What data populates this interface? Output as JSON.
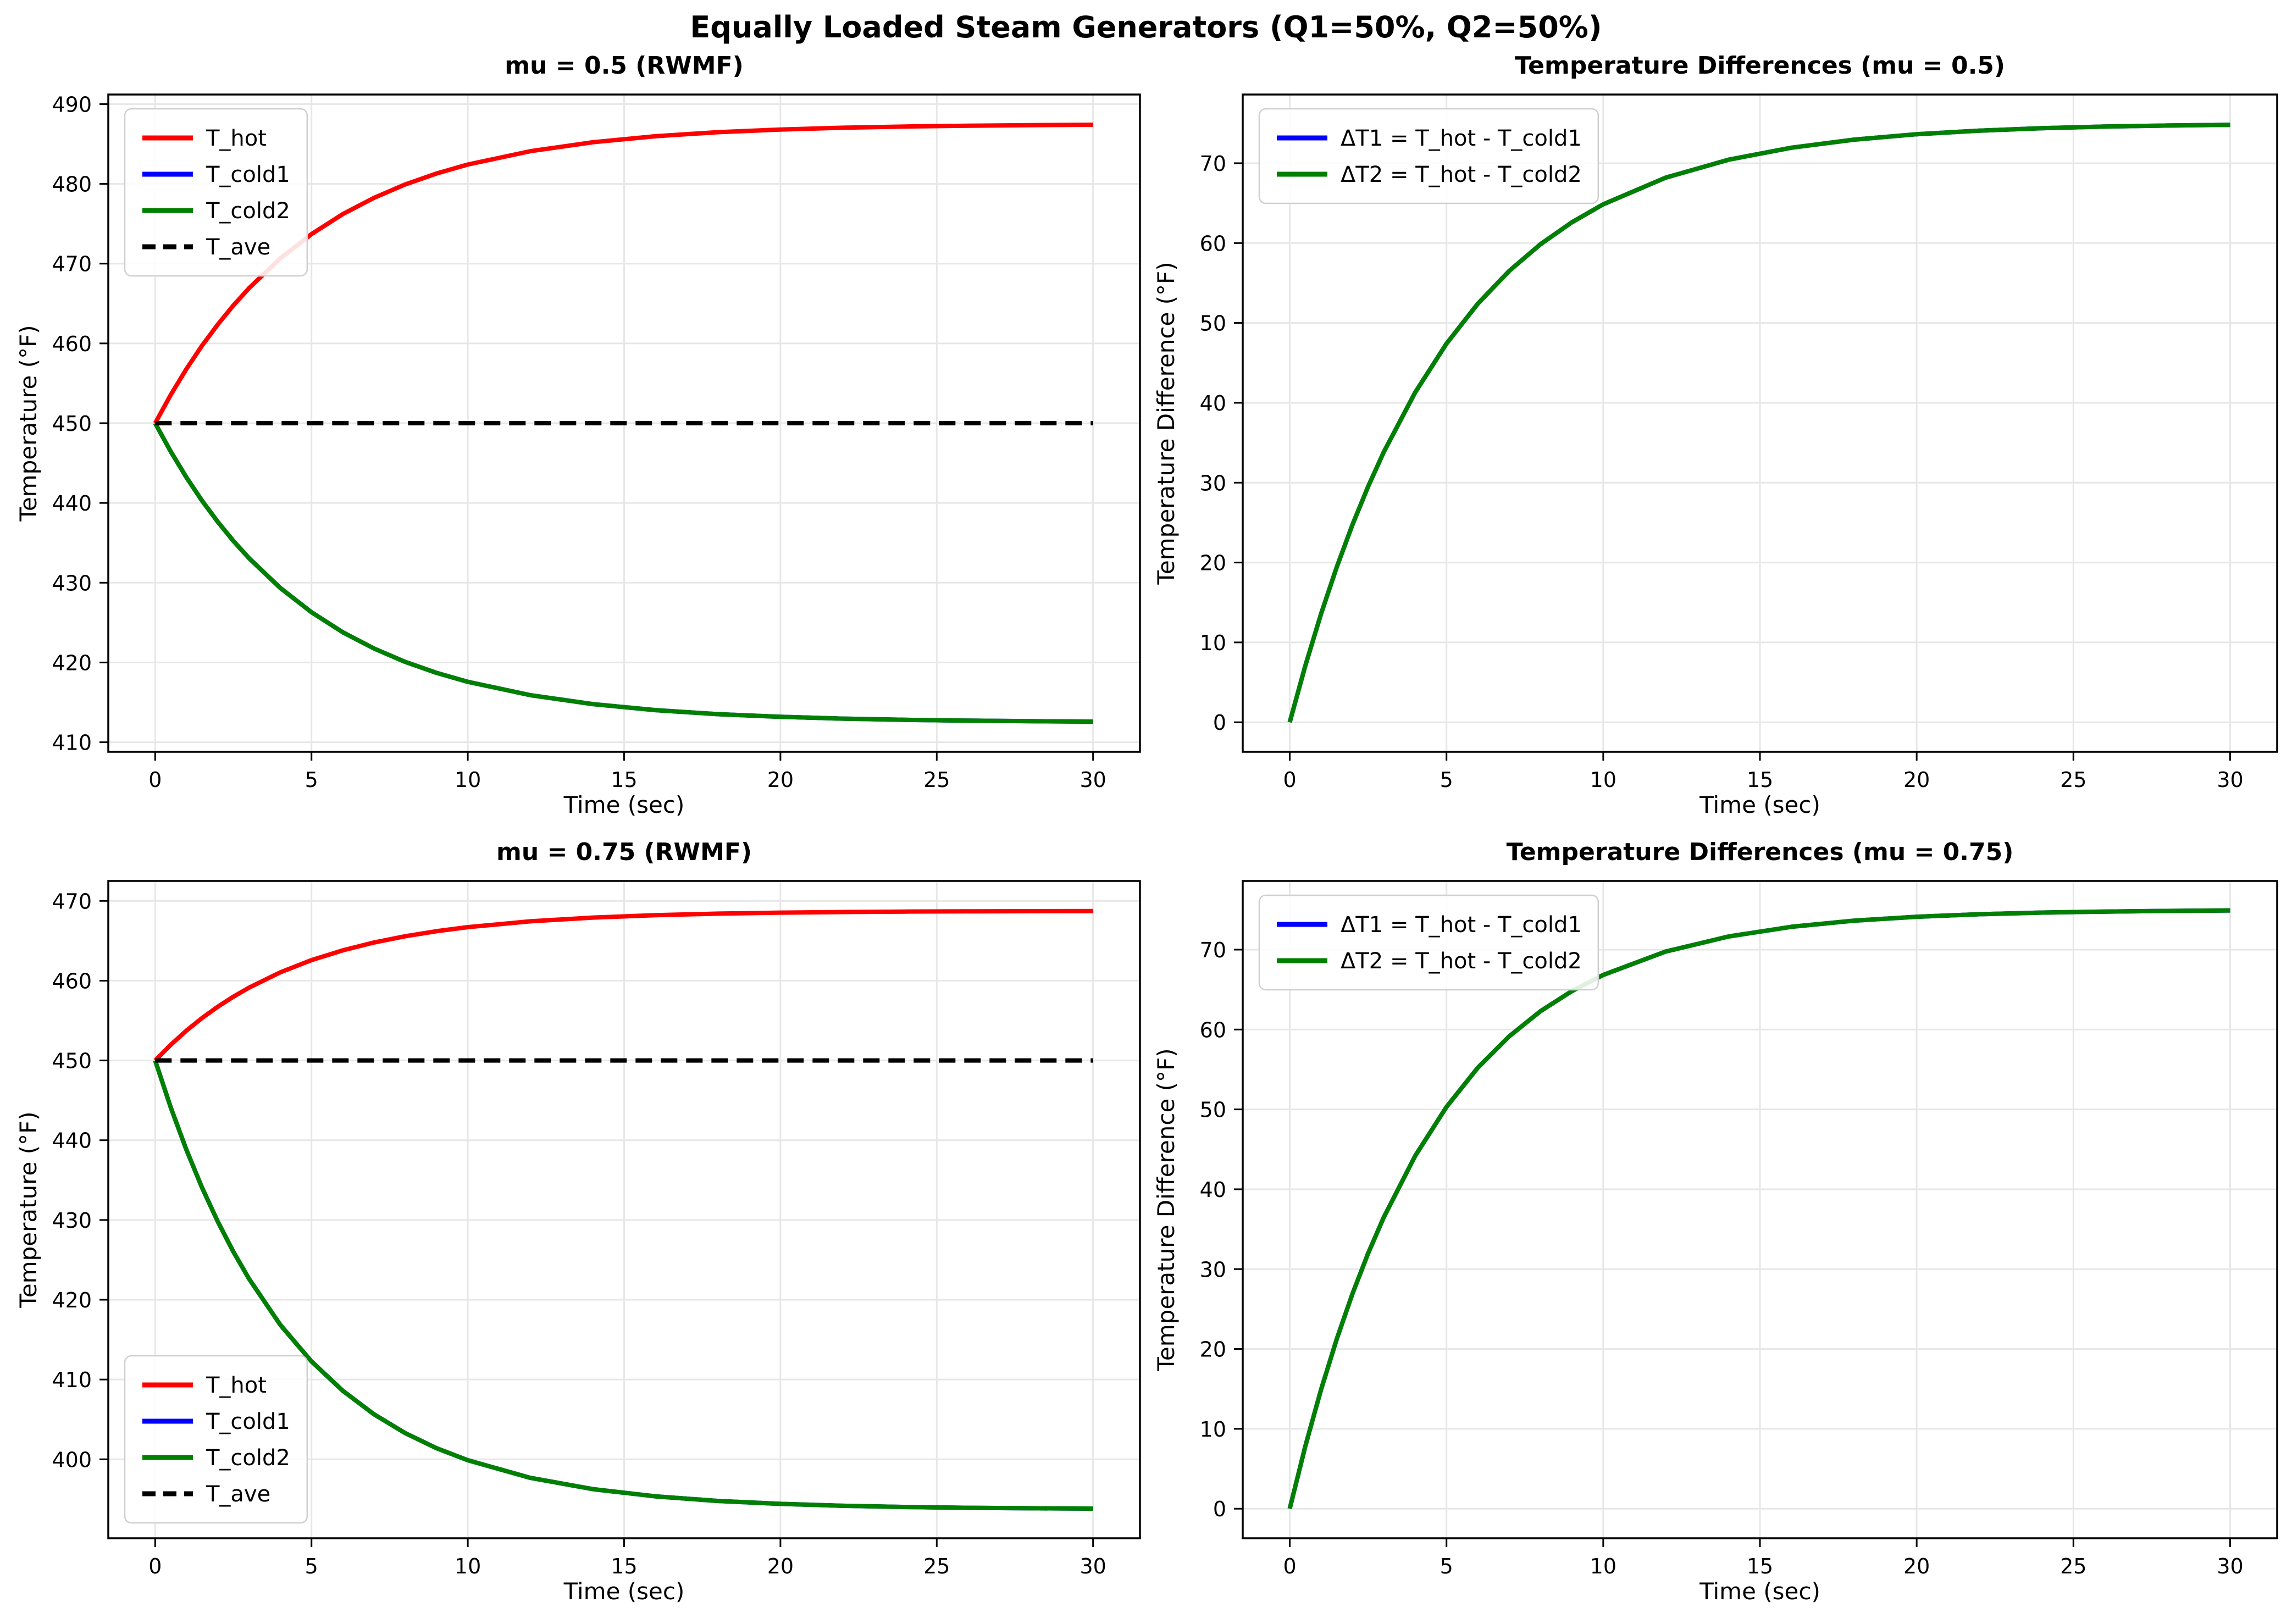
{
  "figure": {
    "suptitle": "Equally Loaded Steam Generators (Q1=50%, Q2=50%)",
    "background": "#ffffff",
    "grid_color": "#e7e7e7",
    "spine_color": "#000000"
  },
  "colors": {
    "t_hot": "#ff0000",
    "t_cold1": "#0000ff",
    "t_cold2": "#008000",
    "t_ave": "#000000"
  },
  "chart_data": [
    {
      "type": "line",
      "title": "mu = 0.5 (RWMF)",
      "xlabel": "Time (sec)",
      "ylabel": "Temperature (°F)",
      "xlim": [
        -1.5,
        31.5
      ],
      "ylim": [
        408.8,
        491.2
      ],
      "xticks": [
        0,
        5,
        10,
        15,
        20,
        25,
        30
      ],
      "yticks": [
        410,
        420,
        430,
        440,
        450,
        460,
        470,
        480,
        490
      ],
      "grid": true,
      "legend_loc": "upper-left",
      "x": [
        0,
        0.5,
        1,
        1.5,
        2,
        2.5,
        3,
        4,
        5,
        6,
        7,
        8,
        9,
        10,
        12,
        14,
        16,
        18,
        20,
        22,
        24,
        26,
        28,
        30
      ],
      "series": [
        {
          "name": "T_hot",
          "color": "#ff0000",
          "dash": false,
          "values": [
            450,
            453.57,
            456.8,
            459.72,
            462.36,
            464.76,
            466.92,
            470.65,
            473.7,
            476.21,
            478.25,
            479.93,
            481.3,
            482.42,
            484.1,
            485.22,
            485.97,
            486.48,
            486.81,
            487.04,
            487.19,
            487.29,
            487.36,
            487.41
          ]
        },
        {
          "name": "T_cold1",
          "color": "#0000ff",
          "dash": false,
          "values": [
            450,
            446.43,
            443.2,
            440.28,
            437.64,
            435.24,
            433.08,
            429.35,
            426.3,
            423.79,
            421.75,
            420.07,
            418.7,
            417.58,
            415.9,
            414.78,
            414.03,
            413.52,
            413.19,
            412.96,
            412.81,
            412.71,
            412.64,
            412.59
          ]
        },
        {
          "name": "T_cold2",
          "color": "#008000",
          "dash": false,
          "values": [
            450,
            446.43,
            443.2,
            440.28,
            437.64,
            435.24,
            433.08,
            429.35,
            426.3,
            423.79,
            421.75,
            420.07,
            418.7,
            417.58,
            415.9,
            414.78,
            414.03,
            413.52,
            413.19,
            412.96,
            412.81,
            412.71,
            412.64,
            412.59
          ]
        },
        {
          "name": "T_ave",
          "color": "#000000",
          "dash": true,
          "x": [
            0,
            30
          ],
          "values": [
            450,
            450
          ]
        }
      ]
    },
    {
      "type": "line",
      "title": "Temperature Differences (mu = 0.5)",
      "xlabel": "Time (sec)",
      "ylabel": "Temperature Difference (°F)",
      "xlim": [
        -1.5,
        31.5
      ],
      "ylim": [
        -3.7,
        78.6
      ],
      "xticks": [
        0,
        5,
        10,
        15,
        20,
        25,
        30
      ],
      "yticks": [
        0,
        10,
        20,
        30,
        40,
        50,
        60,
        70
      ],
      "grid": true,
      "legend_loc": "upper-left",
      "x": [
        0,
        0.5,
        1,
        1.5,
        2,
        2.5,
        3,
        4,
        5,
        6,
        7,
        8,
        9,
        10,
        12,
        14,
        16,
        18,
        20,
        22,
        24,
        26,
        28,
        30
      ],
      "series": [
        {
          "name": "ΔT1 = T_hot - T_cold1",
          "color": "#0000ff",
          "dash": false,
          "values": [
            0,
            7.14,
            13.6,
            19.44,
            24.73,
            29.51,
            33.84,
            41.3,
            47.41,
            52.41,
            56.51,
            59.86,
            62.6,
            64.85,
            68.2,
            70.44,
            71.94,
            72.95,
            73.63,
            74.08,
            74.38,
            74.59,
            74.72,
            74.81
          ]
        },
        {
          "name": "ΔT2 = T_hot - T_cold2",
          "color": "#008000",
          "dash": false,
          "values": [
            0,
            7.14,
            13.6,
            19.44,
            24.73,
            29.51,
            33.84,
            41.3,
            47.41,
            52.41,
            56.51,
            59.86,
            62.6,
            64.85,
            68.2,
            70.44,
            71.94,
            72.95,
            73.63,
            74.08,
            74.38,
            74.59,
            74.72,
            74.81
          ]
        }
      ]
    },
    {
      "type": "line",
      "title": "mu = 0.75 (RWMF)",
      "xlabel": "Time (sec)",
      "ylabel": "Temperature (°F)",
      "xlim": [
        -1.5,
        31.5
      ],
      "ylim": [
        390.1,
        472.5
      ],
      "xticks": [
        0,
        5,
        10,
        15,
        20,
        25,
        30
      ],
      "yticks": [
        400,
        410,
        420,
        430,
        440,
        450,
        460,
        470
      ],
      "grid": true,
      "legend_loc": "lower-left",
      "x": [
        0,
        0.5,
        1,
        1.5,
        2,
        2.5,
        3,
        4,
        5,
        6,
        7,
        8,
        9,
        10,
        12,
        14,
        16,
        18,
        20,
        22,
        24,
        26,
        28,
        30
      ],
      "series": [
        {
          "name": "T_hot",
          "color": "#ff0000",
          "dash": false,
          "values": [
            450,
            451.97,
            453.74,
            455.32,
            456.73,
            457.99,
            459.12,
            461.04,
            462.58,
            463.8,
            464.79,
            465.57,
            466.2,
            466.71,
            467.44,
            467.91,
            468.21,
            468.41,
            468.53,
            468.61,
            468.66,
            468.69,
            468.71,
            468.73
          ]
        },
        {
          "name": "T_cold1",
          "color": "#0000ff",
          "dash": false,
          "values": [
            450,
            444.08,
            438.79,
            434.05,
            429.82,
            426.03,
            422.63,
            416.87,
            412.27,
            408.59,
            405.64,
            403.28,
            401.39,
            399.88,
            397.67,
            396.26,
            395.36,
            394.78,
            394.41,
            394.17,
            394.02,
            393.92,
            393.86,
            393.82
          ]
        },
        {
          "name": "T_cold2",
          "color": "#008000",
          "dash": false,
          "values": [
            450,
            444.08,
            438.79,
            434.05,
            429.82,
            426.03,
            422.63,
            416.87,
            412.27,
            408.59,
            405.64,
            403.28,
            401.39,
            399.88,
            397.67,
            396.26,
            395.36,
            394.78,
            394.41,
            394.17,
            394.02,
            393.92,
            393.86,
            393.82
          ]
        },
        {
          "name": "T_ave",
          "color": "#000000",
          "dash": true,
          "x": [
            0,
            30
          ],
          "values": [
            450,
            450
          ]
        }
      ]
    },
    {
      "type": "line",
      "title": "Temperature Differences (mu = 0.75)",
      "xlabel": "Time (sec)",
      "ylabel": "Temperature Difference (°F)",
      "xlim": [
        -1.5,
        31.5
      ],
      "ylim": [
        -3.7,
        78.6
      ],
      "xticks": [
        0,
        5,
        10,
        15,
        20,
        25,
        30
      ],
      "yticks": [
        0,
        10,
        20,
        30,
        40,
        50,
        60,
        70
      ],
      "grid": true,
      "legend_loc": "upper-left",
      "x": [
        0,
        0.5,
        1,
        1.5,
        2,
        2.5,
        3,
        4,
        5,
        6,
        7,
        8,
        9,
        10,
        12,
        14,
        16,
        18,
        20,
        22,
        24,
        26,
        28,
        30
      ],
      "series": [
        {
          "name": "ΔT1 = T_hot - T_cold1",
          "color": "#0000ff",
          "dash": false,
          "values": [
            0,
            7.89,
            14.94,
            21.26,
            26.91,
            31.97,
            36.49,
            44.17,
            50.31,
            55.22,
            59.15,
            62.3,
            64.81,
            66.83,
            69.77,
            71.65,
            72.86,
            73.63,
            74.12,
            74.44,
            74.64,
            74.77,
            74.85,
            74.91
          ]
        },
        {
          "name": "ΔT2 = T_hot - T_cold2",
          "color": "#008000",
          "dash": false,
          "values": [
            0,
            7.89,
            14.94,
            21.26,
            26.91,
            31.97,
            36.49,
            44.17,
            50.31,
            55.22,
            59.15,
            62.3,
            64.81,
            66.83,
            69.77,
            71.65,
            72.86,
            73.63,
            74.12,
            74.44,
            74.64,
            74.77,
            74.85,
            74.91
          ]
        }
      ]
    }
  ]
}
